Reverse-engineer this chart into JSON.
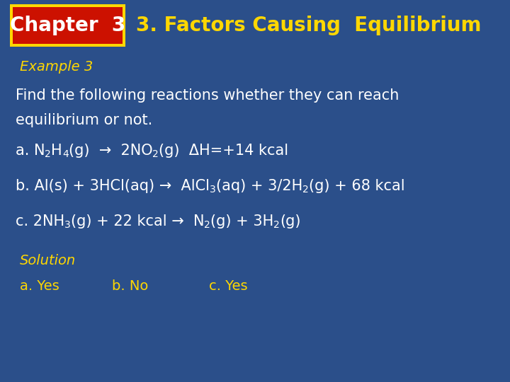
{
  "bg_color": "#2B4F8A",
  "chapter_label": "Chapter  3",
  "chapter_box_bg": "#CC1100",
  "chapter_box_border": "#FFD700",
  "title_text": "3. Factors Causing  Equilibrium",
  "title_color": "#FFD700",
  "example_label": "Example 3",
  "example_color": "#FFD700",
  "body_color": "#FFFFFF",
  "solution_color": "#FFD700",
  "line1": "Find the following reactions whether they can reach",
  "line2": "equilibrium or not.",
  "sol_a": "a. Yes",
  "sol_b": "b. No",
  "sol_c": "c. Yes"
}
